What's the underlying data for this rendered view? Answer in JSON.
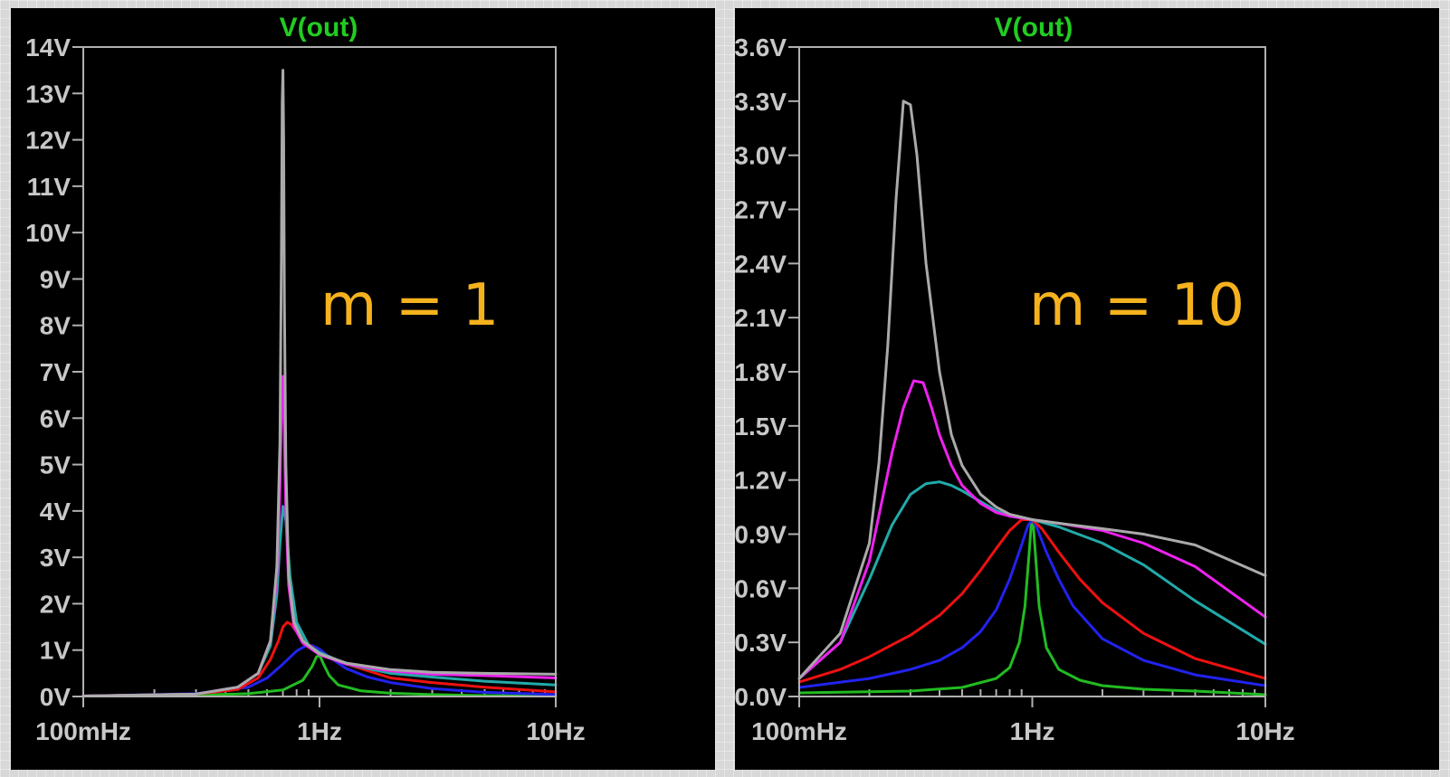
{
  "chart_data": [
    {
      "type": "line",
      "title": "V(out)",
      "title_color": "#22cc22",
      "annotation": "m = 1",
      "annotation_color": "#f6b21e",
      "x_scale": "log",
      "xlim": [
        0.1,
        10
      ],
      "ylim": [
        0,
        14
      ],
      "x_ticks": [
        {
          "value": 0.1,
          "label": "100mHz"
        },
        {
          "value": 1,
          "label": "1Hz"
        },
        {
          "value": 10,
          "label": "10Hz"
        }
      ],
      "y_ticks": [
        {
          "value": 0,
          "label": "0V"
        },
        {
          "value": 1,
          "label": "1V"
        },
        {
          "value": 2,
          "label": "2V"
        },
        {
          "value": 3,
          "label": "3V"
        },
        {
          "value": 4,
          "label": "4V"
        },
        {
          "value": 5,
          "label": "5V"
        },
        {
          "value": 6,
          "label": "6V"
        },
        {
          "value": 7,
          "label": "7V"
        },
        {
          "value": 8,
          "label": "8V"
        },
        {
          "value": 9,
          "label": "9V"
        },
        {
          "value": 10,
          "label": "10V"
        },
        {
          "value": 11,
          "label": "11V"
        },
        {
          "value": 12,
          "label": "12V"
        },
        {
          "value": 13,
          "label": "13V"
        },
        {
          "value": 14,
          "label": "14V"
        }
      ],
      "series": [
        {
          "color": "#22bb22",
          "x": [
            0.1,
            0.3,
            0.5,
            0.7,
            0.85,
            0.93,
            0.97,
            0.99,
            1.01,
            1.04,
            1.1,
            1.2,
            1.5,
            2,
            3,
            5,
            10
          ],
          "y": [
            0.01,
            0.03,
            0.06,
            0.14,
            0.35,
            0.65,
            0.85,
            0.88,
            0.85,
            0.7,
            0.45,
            0.25,
            0.12,
            0.07,
            0.04,
            0.02,
            0.01
          ]
        },
        {
          "color": "#2222ee",
          "x": [
            0.1,
            0.3,
            0.5,
            0.6,
            0.7,
            0.8,
            0.88,
            0.93,
            1,
            1.1,
            1.3,
            1.6,
            2,
            3,
            5,
            10
          ],
          "y": [
            0.01,
            0.06,
            0.2,
            0.4,
            0.7,
            0.98,
            1.1,
            1.1,
            1.02,
            0.85,
            0.6,
            0.42,
            0.3,
            0.17,
            0.09,
            0.04
          ]
        },
        {
          "color": "#ee1111",
          "x": [
            0.1,
            0.3,
            0.45,
            0.55,
            0.62,
            0.67,
            0.7,
            0.73,
            0.76,
            0.8,
            0.88,
            1,
            1.3,
            2,
            3,
            5,
            10
          ],
          "y": [
            0.01,
            0.05,
            0.15,
            0.4,
            0.8,
            1.2,
            1.5,
            1.6,
            1.55,
            1.4,
            1.15,
            0.95,
            0.7,
            0.4,
            0.3,
            0.2,
            0.1
          ]
        },
        {
          "color": "#22aaaa",
          "x": [
            0.1,
            0.3,
            0.45,
            0.55,
            0.62,
            0.66,
            0.68,
            0.7,
            0.72,
            0.75,
            0.8,
            0.9,
            1,
            1.3,
            2,
            3,
            5,
            10
          ],
          "y": [
            0.01,
            0.05,
            0.2,
            0.5,
            1.1,
            2.2,
            3.3,
            4.1,
            3.8,
            2.6,
            1.6,
            1.1,
            0.95,
            0.7,
            0.5,
            0.42,
            0.33,
            0.25
          ]
        },
        {
          "color": "#ee22ee",
          "x": [
            0.1,
            0.3,
            0.45,
            0.55,
            0.62,
            0.66,
            0.68,
            0.69,
            0.7,
            0.71,
            0.72,
            0.74,
            0.78,
            0.85,
            1,
            1.3,
            2,
            3,
            5,
            10
          ],
          "y": [
            0.01,
            0.05,
            0.2,
            0.5,
            1.2,
            2.6,
            4.5,
            6.2,
            6.9,
            5.6,
            4,
            2.4,
            1.5,
            1.15,
            0.9,
            0.7,
            0.55,
            0.48,
            0.45,
            0.4
          ]
        },
        {
          "color": "#aaaaaa",
          "x": [
            0.1,
            0.3,
            0.45,
            0.55,
            0.62,
            0.66,
            0.68,
            0.69,
            0.695,
            0.7,
            0.705,
            0.71,
            0.72,
            0.74,
            0.78,
            0.85,
            1,
            1.3,
            2,
            3,
            5,
            10
          ],
          "y": [
            0.01,
            0.05,
            0.2,
            0.5,
            1.2,
            2.8,
            5.5,
            9.5,
            12.8,
            13.5,
            12,
            8.5,
            5,
            2.6,
            1.6,
            1.2,
            0.92,
            0.72,
            0.58,
            0.52,
            0.5,
            0.48
          ]
        }
      ]
    },
    {
      "type": "line",
      "title": "V(out)",
      "title_color": "#22cc22",
      "annotation": "m = 10",
      "annotation_color": "#f6b21e",
      "x_scale": "log",
      "xlim": [
        0.1,
        10
      ],
      "ylim": [
        0,
        3.6
      ],
      "x_ticks": [
        {
          "value": 0.1,
          "label": "100mHz"
        },
        {
          "value": 1,
          "label": "1Hz"
        },
        {
          "value": 10,
          "label": "10Hz"
        }
      ],
      "y_ticks": [
        {
          "value": 0,
          "label": "0.0V"
        },
        {
          "value": 0.3,
          "label": "0.3V"
        },
        {
          "value": 0.6,
          "label": "0.6V"
        },
        {
          "value": 0.9,
          "label": "0.9V"
        },
        {
          "value": 1.2,
          "label": "1.2V"
        },
        {
          "value": 1.5,
          "label": "1.5V"
        },
        {
          "value": 1.8,
          "label": "1.8V"
        },
        {
          "value": 2.1,
          "label": "2.1V"
        },
        {
          "value": 2.4,
          "label": "2.4V"
        },
        {
          "value": 2.7,
          "label": "2.7V"
        },
        {
          "value": 3.0,
          "label": "3.0V"
        },
        {
          "value": 3.3,
          "label": "3.3V"
        },
        {
          "value": 3.6,
          "label": "3.6V"
        }
      ],
      "series": [
        {
          "color": "#22bb22",
          "x": [
            0.1,
            0.3,
            0.5,
            0.7,
            0.8,
            0.88,
            0.93,
            0.97,
            0.99,
            1,
            1.01,
            1.03,
            1.07,
            1.15,
            1.3,
            1.6,
            2,
            3,
            5,
            10
          ],
          "y": [
            0.02,
            0.03,
            0.05,
            0.1,
            0.16,
            0.3,
            0.5,
            0.8,
            0.96,
            0.98,
            0.95,
            0.8,
            0.5,
            0.27,
            0.15,
            0.09,
            0.06,
            0.04,
            0.03,
            0.01
          ]
        },
        {
          "color": "#2222ee",
          "x": [
            0.1,
            0.2,
            0.3,
            0.4,
            0.5,
            0.6,
            0.7,
            0.8,
            0.9,
            0.96,
            1,
            1.05,
            1.15,
            1.3,
            1.5,
            2,
            3,
            5,
            10
          ],
          "y": [
            0.05,
            0.1,
            0.15,
            0.2,
            0.27,
            0.36,
            0.48,
            0.65,
            0.84,
            0.95,
            0.98,
            0.93,
            0.8,
            0.65,
            0.5,
            0.32,
            0.2,
            0.12,
            0.06
          ]
        },
        {
          "color": "#ee1111",
          "x": [
            0.1,
            0.15,
            0.2,
            0.3,
            0.4,
            0.5,
            0.6,
            0.7,
            0.8,
            0.9,
            1,
            1.1,
            1.3,
            1.6,
            2,
            3,
            5,
            10
          ],
          "y": [
            0.08,
            0.15,
            0.22,
            0.34,
            0.45,
            0.57,
            0.7,
            0.82,
            0.92,
            0.98,
            0.98,
            0.93,
            0.8,
            0.65,
            0.52,
            0.35,
            0.21,
            0.1
          ]
        },
        {
          "color": "#22aaaa",
          "x": [
            0.1,
            0.15,
            0.2,
            0.25,
            0.3,
            0.35,
            0.4,
            0.45,
            0.5,
            0.6,
            0.7,
            0.8,
            1,
            1.3,
            2,
            3,
            5,
            10
          ],
          "y": [
            0.1,
            0.3,
            0.65,
            0.95,
            1.12,
            1.18,
            1.19,
            1.17,
            1.14,
            1.08,
            1.03,
            1,
            0.98,
            0.94,
            0.85,
            0.73,
            0.53,
            0.29
          ]
        },
        {
          "color": "#ee22ee",
          "x": [
            0.1,
            0.15,
            0.2,
            0.25,
            0.28,
            0.31,
            0.34,
            0.37,
            0.4,
            0.45,
            0.5,
            0.6,
            0.7,
            0.8,
            1,
            1.3,
            2,
            3,
            5,
            10
          ],
          "y": [
            0.1,
            0.3,
            0.75,
            1.35,
            1.6,
            1.75,
            1.74,
            1.6,
            1.45,
            1.28,
            1.17,
            1.07,
            1.02,
            1,
            0.98,
            0.96,
            0.92,
            0.85,
            0.72,
            0.44
          ]
        },
        {
          "color": "#aaaaaa",
          "x": [
            0.1,
            0.15,
            0.2,
            0.22,
            0.24,
            0.26,
            0.28,
            0.3,
            0.32,
            0.35,
            0.4,
            0.45,
            0.5,
            0.6,
            0.7,
            0.8,
            1,
            1.3,
            2,
            3,
            5,
            10
          ],
          "y": [
            0.1,
            0.35,
            0.85,
            1.3,
            1.95,
            2.75,
            3.3,
            3.28,
            3.0,
            2.4,
            1.8,
            1.45,
            1.28,
            1.12,
            1.05,
            1.01,
            0.98,
            0.96,
            0.93,
            0.9,
            0.84,
            0.67
          ]
        }
      ]
    }
  ]
}
